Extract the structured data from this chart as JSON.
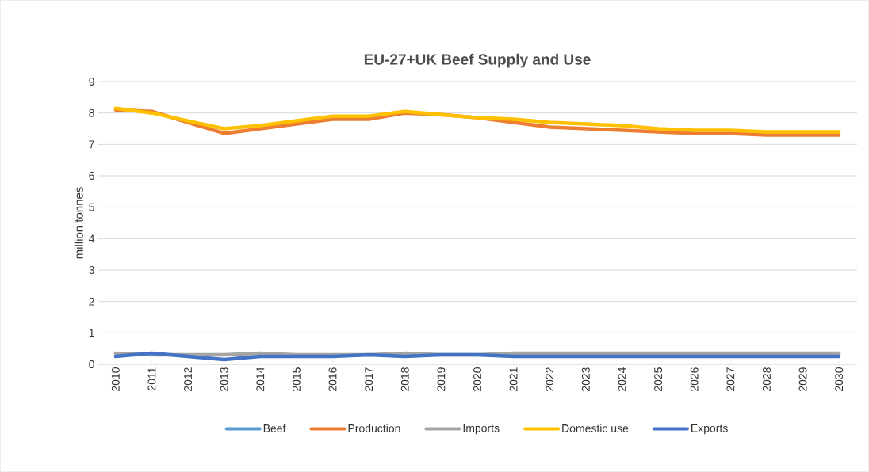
{
  "chart_data": {
    "type": "line",
    "title": "EU-27+UK Beef Supply and Use",
    "ylabel": "million tonnes",
    "categories": [
      "2010",
      "2011",
      "2012",
      "2013",
      "2014",
      "2015",
      "2016",
      "2017",
      "2018",
      "2019",
      "2020",
      "2021",
      "2022",
      "2023",
      "2024",
      "2025",
      "2026",
      "2027",
      "2028",
      "2029",
      "2030"
    ],
    "series": [
      {
        "name": "Beef",
        "color": "#5b9bd5",
        "values": [
          null,
          null,
          null,
          null,
          null,
          null,
          null,
          null,
          null,
          null,
          null,
          null,
          null,
          null,
          null,
          null,
          null,
          null,
          null,
          null,
          null
        ]
      },
      {
        "name": "Production",
        "color": "#ed7d31",
        "values": [
          8.1,
          8.05,
          7.7,
          7.35,
          7.5,
          7.65,
          7.8,
          7.8,
          8.0,
          7.95,
          7.85,
          7.7,
          7.55,
          7.5,
          7.45,
          7.4,
          7.35,
          7.35,
          7.3,
          7.3,
          7.3
        ]
      },
      {
        "name": "Imports",
        "color": "#a5a5a5",
        "values": [
          0.35,
          0.3,
          0.3,
          0.3,
          0.35,
          0.3,
          0.3,
          0.3,
          0.35,
          0.3,
          0.3,
          0.35,
          0.35,
          0.35,
          0.35,
          0.35,
          0.35,
          0.35,
          0.35,
          0.35,
          0.35
        ]
      },
      {
        "name": "Domestic use",
        "color": "#ffc000",
        "values": [
          8.15,
          8.0,
          7.75,
          7.5,
          7.6,
          7.75,
          7.9,
          7.9,
          8.05,
          7.95,
          7.85,
          7.8,
          7.7,
          7.65,
          7.6,
          7.5,
          7.45,
          7.45,
          7.4,
          7.4,
          7.4
        ]
      },
      {
        "name": "Exports",
        "color": "#4472c4",
        "values": [
          0.25,
          0.35,
          0.25,
          0.15,
          0.25,
          0.25,
          0.25,
          0.3,
          0.25,
          0.3,
          0.3,
          0.25,
          0.25,
          0.25,
          0.25,
          0.25,
          0.25,
          0.25,
          0.25,
          0.25,
          0.25
        ]
      }
    ],
    "ylim": [
      0,
      9
    ],
    "yticks": [
      0,
      1,
      2,
      3,
      4,
      5,
      6,
      7,
      8,
      9
    ],
    "grid": "y",
    "legend": "bottom",
    "marker": "none",
    "line_style": "solid"
  }
}
